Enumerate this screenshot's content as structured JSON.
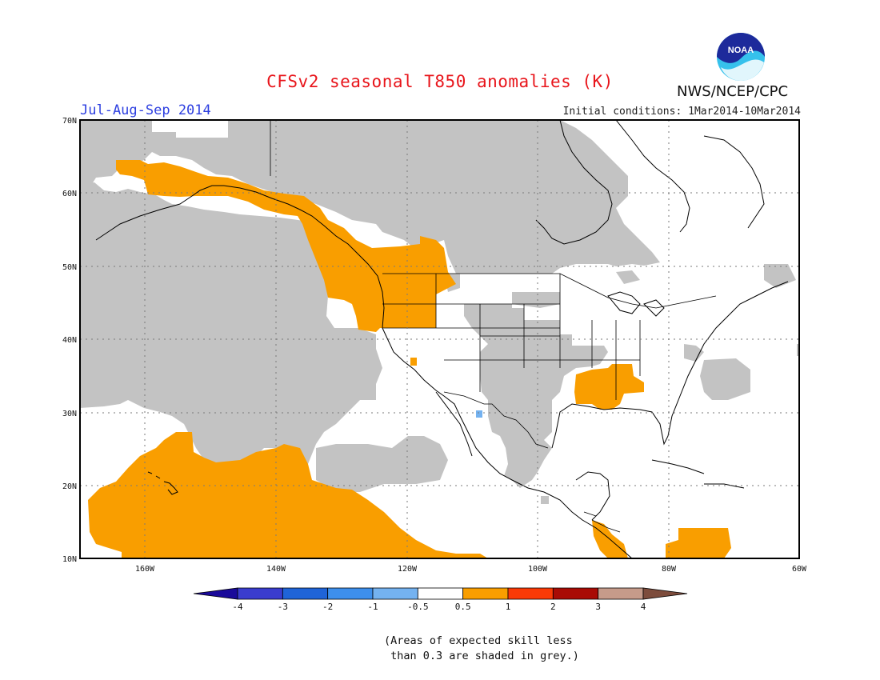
{
  "header": {
    "title": "CFSv2 seasonal T850 anomalies (K)",
    "season": "Jul-Aug-Sep 2014",
    "initial_conditions": "Initial conditions: 1Mar2014-10Mar2014",
    "agency": "NWS/NCEP/CPC",
    "logo_text": "NOAA"
  },
  "map": {
    "projection": "lat-lon",
    "lon_range": [
      -172,
      -60
    ],
    "lat_range": [
      10,
      70
    ],
    "lat_labels": [
      "70N",
      "60N",
      "50N",
      "40N",
      "30N",
      "20N",
      "10N"
    ],
    "lon_labels": [
      "160W",
      "140W",
      "120W",
      "100W",
      "80W",
      "60W"
    ],
    "shading": {
      "anomaly_0_5_to_1": "#f99e00",
      "anomaly_neg_1_to_neg_0_5": "#74b2f0",
      "low_skill_grey": "#c3c3c3"
    },
    "regions": [
      {
        "label": "Alaska / Pacific Northwest warm anomaly",
        "category": "0.5 to 1"
      },
      {
        "label": "Hawaii / central Pacific warm anomaly",
        "category": "0.5 to 1"
      },
      {
        "label": "Southeast US warm anomaly",
        "category": "0.5 to 1"
      },
      {
        "label": "Caribbean / Central America warm anomaly",
        "category": "0.5 to 1"
      },
      {
        "label": "Southwest US cold pixel",
        "category": "-1 to -0.5"
      }
    ]
  },
  "colorbar": {
    "labels": [
      "-4",
      "-3",
      "-2",
      "-1",
      "-0.5",
      "0.5",
      "1",
      "2",
      "3",
      "4"
    ],
    "colors": [
      "#1a0a9a",
      "#3a3cce",
      "#1f64d8",
      "#3d8fec",
      "#74b2f0",
      "#ffffff",
      "#f99e00",
      "#fa3a06",
      "#a90b05",
      "#c69b8a",
      "#7d4c3c"
    ]
  },
  "note": {
    "line1": "(Areas of expected skill less",
    "line2": " than 0.3 are shaded in grey.)"
  }
}
